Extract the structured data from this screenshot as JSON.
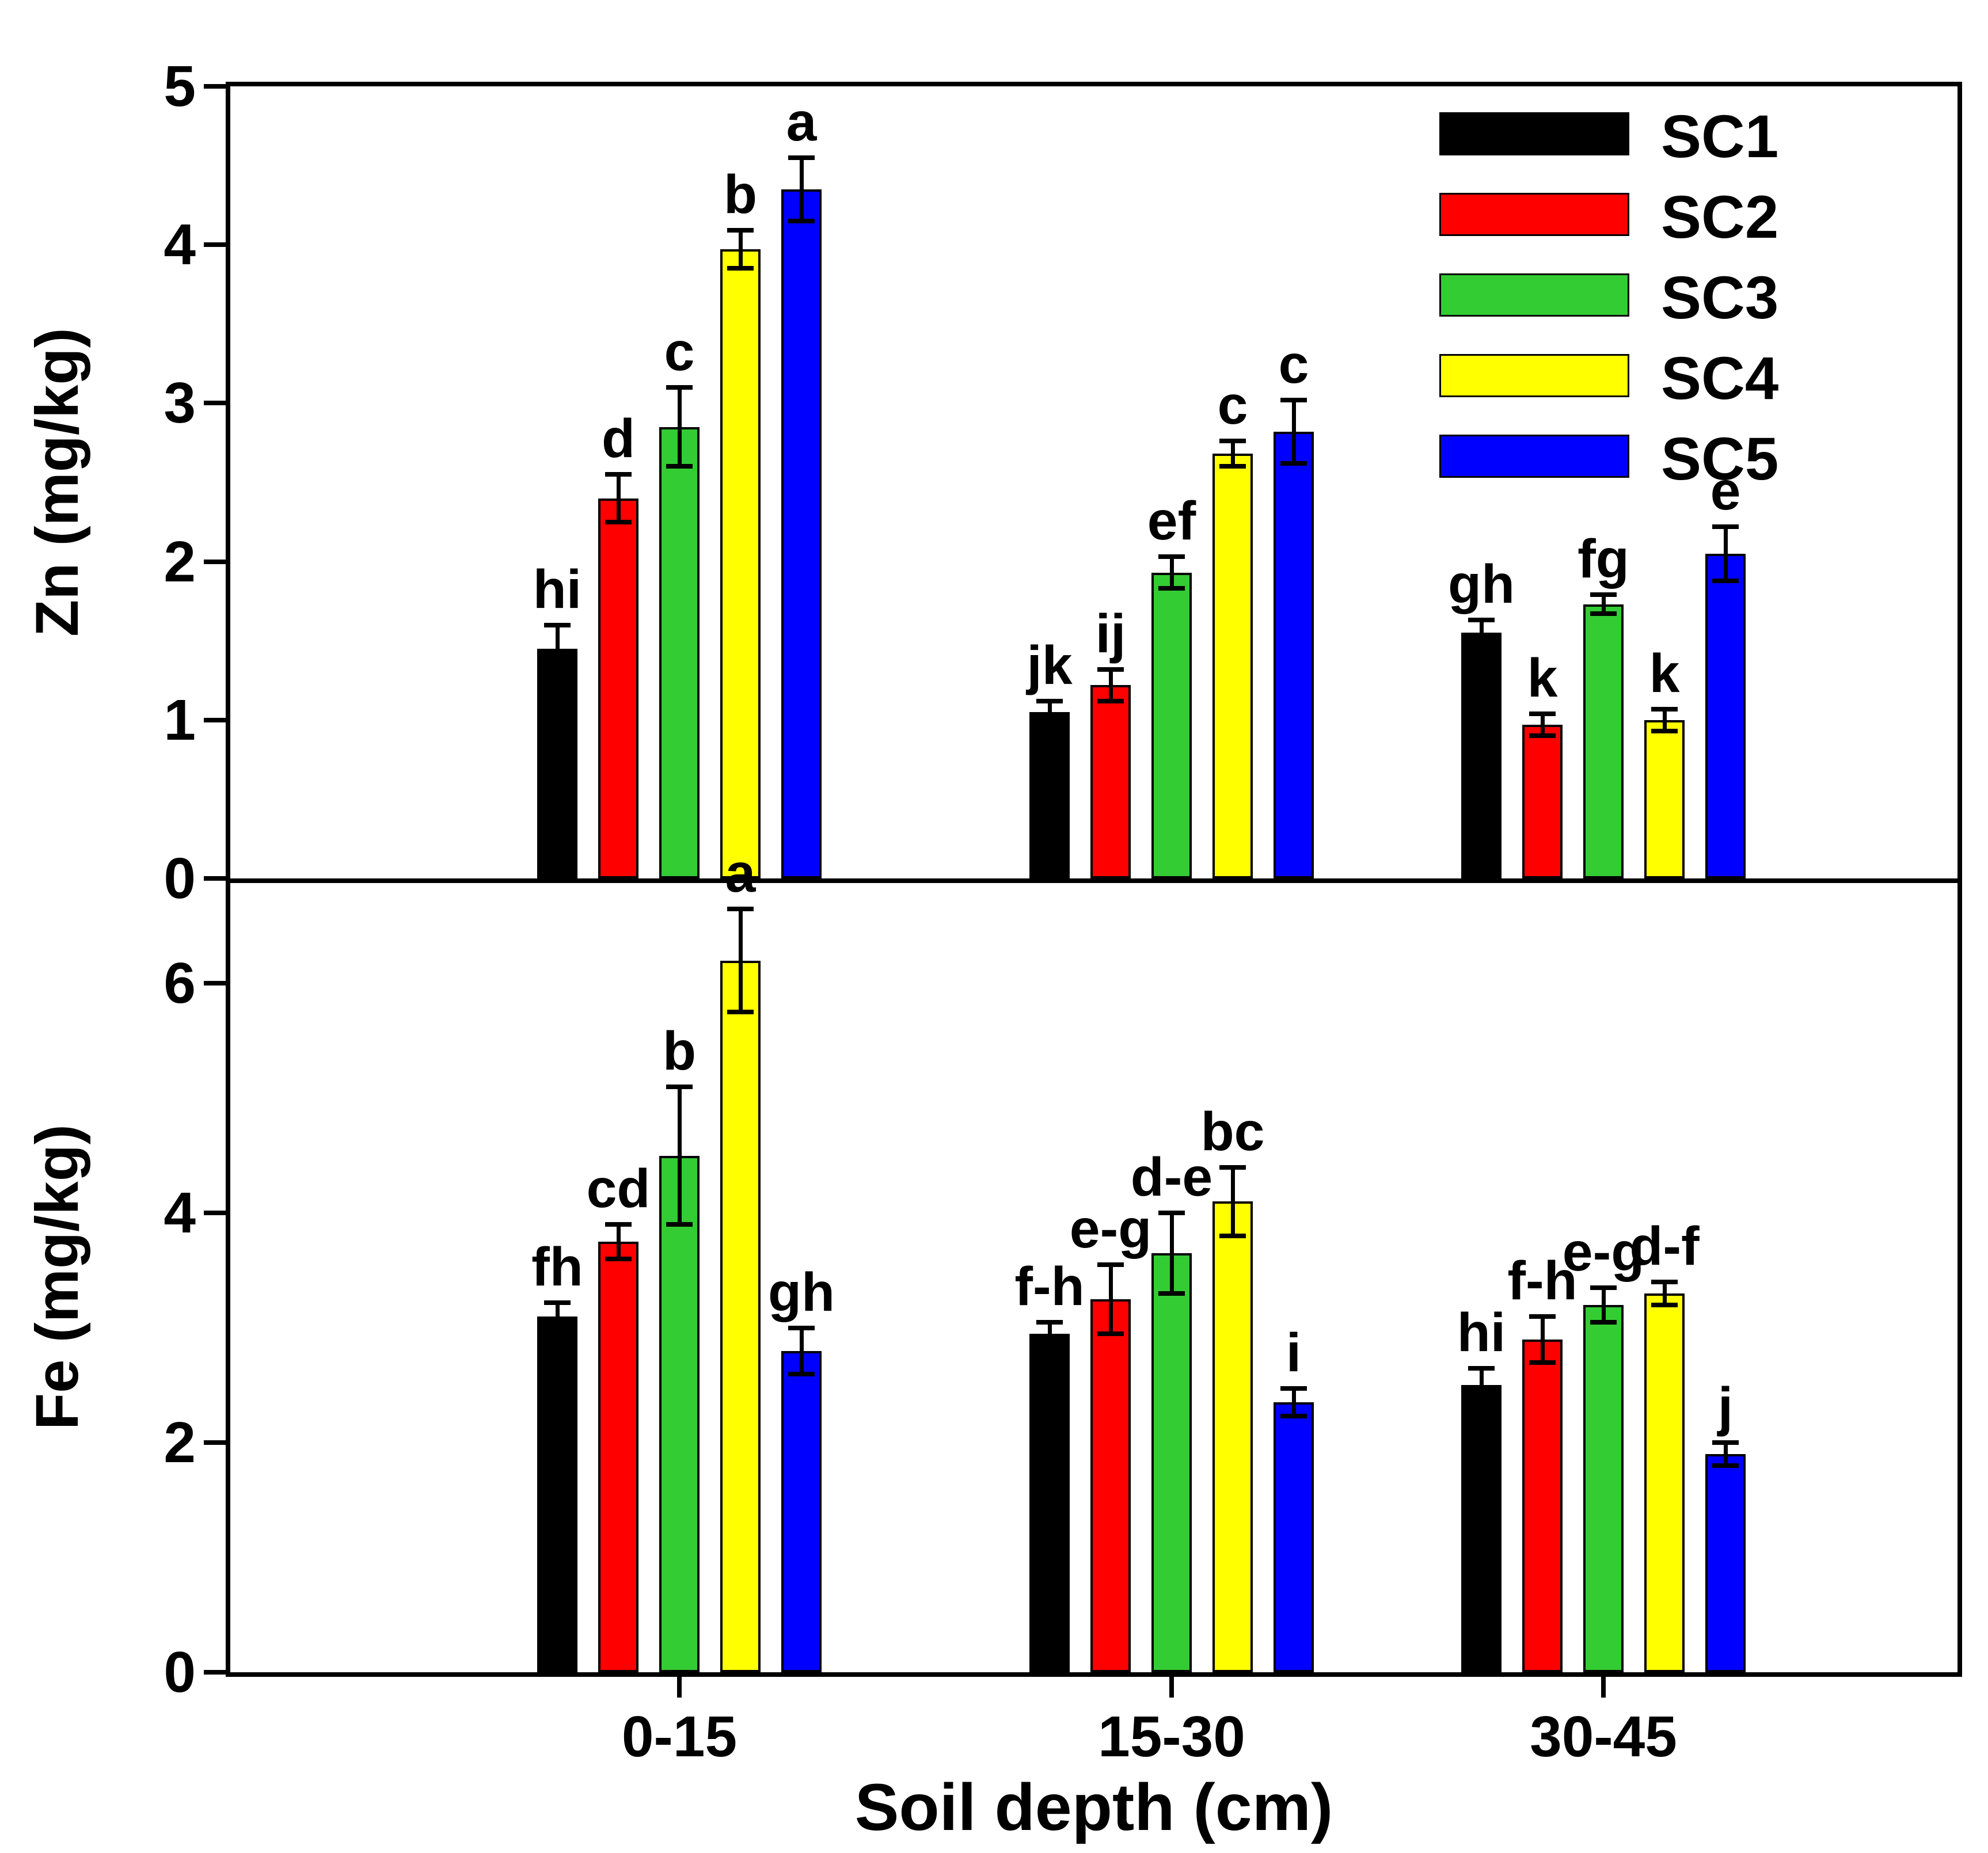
{
  "figure": {
    "x_axis_label": "Soil depth (cm)",
    "categories": [
      "0-15",
      "15-30",
      "30-45"
    ],
    "legend": {
      "position": "top-right",
      "items": [
        {
          "label": "SC1",
          "color": "#000000"
        },
        {
          "label": "SC2",
          "color": "#ff0000"
        },
        {
          "label": "SC3",
          "color": "#33cc33"
        },
        {
          "label": "SC4",
          "color": "#ffff00"
        },
        {
          "label": "SC5",
          "color": "#0000ff"
        }
      ]
    }
  },
  "chart_data": [
    {
      "type": "bar",
      "panel": "top",
      "title": "",
      "xlabel": "Soil depth (cm)",
      "ylabel": "Zn (mg/kg)",
      "ylim": [
        0,
        5
      ],
      "yticks": [
        0,
        1,
        2,
        3,
        4,
        5
      ],
      "grid": false,
      "legend_position": "top-right-inside",
      "categories": [
        "0-15",
        "15-30",
        "30-45"
      ],
      "series": [
        {
          "name": "SC1",
          "color": "#000000",
          "values": [
            1.45,
            1.05,
            1.55
          ],
          "errors": [
            0.15,
            0.07,
            0.08
          ],
          "letters": [
            "hi",
            "jk",
            "gh"
          ]
        },
        {
          "name": "SC2",
          "color": "#ff0000",
          "values": [
            2.4,
            1.22,
            0.97
          ],
          "errors": [
            0.15,
            0.1,
            0.07
          ],
          "letters": [
            "d",
            "ij",
            "k"
          ]
        },
        {
          "name": "SC3",
          "color": "#33cc33",
          "values": [
            2.85,
            1.93,
            1.73
          ],
          "errors": [
            0.25,
            0.1,
            0.06
          ],
          "letters": [
            "c",
            "ef",
            "fg"
          ]
        },
        {
          "name": "SC4",
          "color": "#ffff00",
          "values": [
            3.97,
            2.68,
            1.0
          ],
          "errors": [
            0.12,
            0.08,
            0.07
          ],
          "letters": [
            "b",
            "c",
            "k"
          ]
        },
        {
          "name": "SC5",
          "color": "#0000ff",
          "values": [
            4.35,
            2.82,
            2.05
          ],
          "errors": [
            0.2,
            0.2,
            0.17
          ],
          "letters": [
            "a",
            "c",
            "e"
          ]
        }
      ]
    },
    {
      "type": "bar",
      "panel": "bottom",
      "title": "",
      "xlabel": "Soil depth (cm)",
      "ylabel": "Fe (mg/kg)",
      "ylim": [
        0,
        6.875
      ],
      "yticks": [
        0,
        2,
        4,
        6
      ],
      "grid": false,
      "categories": [
        "0-15",
        "15-30",
        "30-45"
      ],
      "series": [
        {
          "name": "SC1",
          "color": "#000000",
          "values": [
            3.1,
            2.95,
            2.5
          ],
          "errors": [
            0.12,
            0.1,
            0.15
          ],
          "letters": [
            "fh",
            "f-h",
            "hi"
          ]
        },
        {
          "name": "SC2",
          "color": "#ff0000",
          "values": [
            3.75,
            3.25,
            2.9
          ],
          "errors": [
            0.15,
            0.3,
            0.2
          ],
          "letters": [
            "cd",
            "e-g",
            "f-h"
          ]
        },
        {
          "name": "SC3",
          "color": "#33cc33",
          "values": [
            4.5,
            3.65,
            3.2
          ],
          "errors": [
            0.6,
            0.35,
            0.15
          ],
          "letters": [
            "b",
            "d-e",
            "e-g"
          ]
        },
        {
          "name": "SC4",
          "color": "#ffff00",
          "values": [
            6.2,
            4.1,
            3.3
          ],
          "errors": [
            0.45,
            0.3,
            0.1
          ],
          "letters": [
            "a",
            "bc",
            "d-f"
          ]
        },
        {
          "name": "SC5",
          "color": "#0000ff",
          "values": [
            2.8,
            2.35,
            1.9
          ],
          "errors": [
            0.2,
            0.12,
            0.1
          ],
          "letters": [
            "gh",
            "i",
            "j"
          ]
        }
      ]
    }
  ]
}
